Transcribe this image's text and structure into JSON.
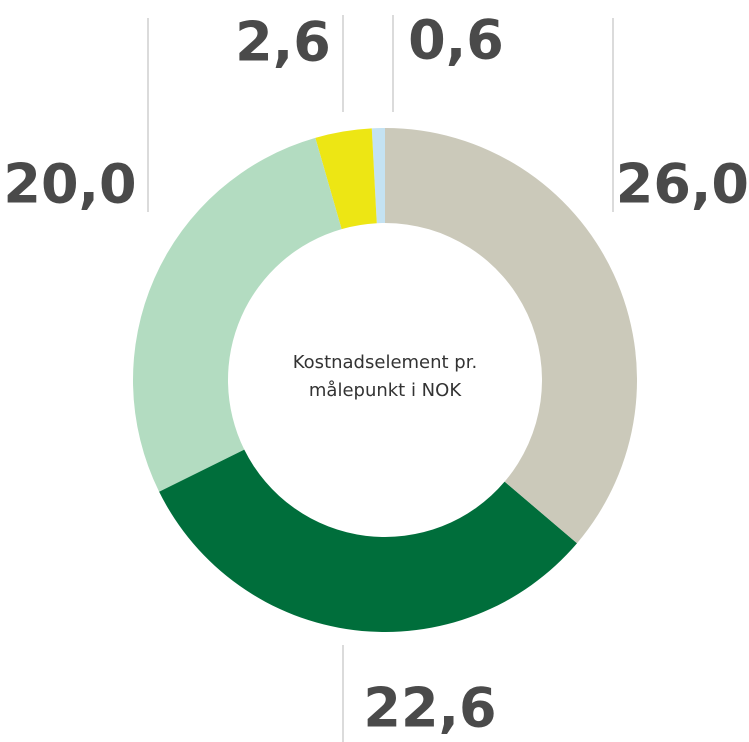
{
  "chart_data": {
    "type": "donut",
    "center_text": [
      "Kostnadselement pr.",
      "målepunkt i NOK"
    ],
    "categories": [
      null,
      null,
      null,
      null,
      null
    ],
    "values": [
      26.0,
      22.6,
      20.0,
      2.6,
      0.6
    ],
    "value_labels": [
      "26,0",
      "22,6",
      "20,0",
      "2,6",
      "0,6"
    ],
    "colors": [
      "#cbc9ba",
      "#006e3b",
      "#b3dcc1",
      "#ede614",
      "#c4e2f2"
    ]
  }
}
